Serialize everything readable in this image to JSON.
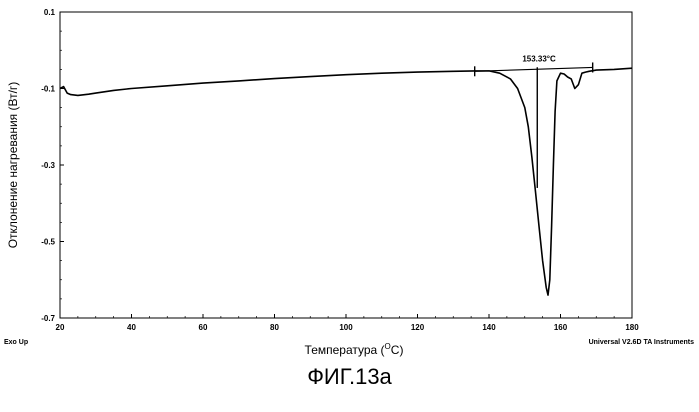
{
  "chart_data": {
    "type": "line",
    "xlabel_main": "Температура (",
    "xlabel_sup": "O",
    "xlabel_tail": "C)",
    "ylabel": "Отклонение нагревания (Вт/г)",
    "xlim": [
      20,
      180
    ],
    "ylim": [
      -0.7,
      0.1
    ],
    "x_ticks": [
      20,
      40,
      60,
      80,
      100,
      120,
      140,
      160,
      180
    ],
    "y_ticks": [
      0.1,
      -0.1,
      -0.3,
      -0.5,
      -0.7
    ],
    "y_tick_labels": [
      "0.1",
      "-0.1",
      "-0.3",
      "-0.5",
      "-0.7"
    ],
    "annotation": "153.33°C",
    "annotation_x": 154,
    "peak_marker_x": 153.5,
    "integration_limits": [
      136,
      169
    ],
    "baseline": {
      "x": [
        136,
        169
      ],
      "y": [
        -0.055,
        -0.045
      ]
    },
    "series": [
      {
        "x": [
          20,
          21,
          22,
          23,
          25,
          28,
          30,
          35,
          40,
          50,
          60,
          70,
          80,
          90,
          100,
          110,
          120,
          130,
          136,
          140,
          143,
          146,
          148,
          150,
          151,
          152,
          153,
          154,
          155,
          156,
          156.5,
          157,
          157.5,
          158,
          158.5,
          159,
          160,
          161,
          162,
          163,
          164,
          165,
          166,
          167,
          168,
          170,
          175,
          180
        ],
        "y": [
          -0.1,
          -0.095,
          -0.112,
          -0.116,
          -0.118,
          -0.115,
          -0.112,
          -0.105,
          -0.1,
          -0.093,
          -0.086,
          -0.08,
          -0.074,
          -0.069,
          -0.064,
          -0.06,
          -0.057,
          -0.055,
          -0.054,
          -0.054,
          -0.06,
          -0.075,
          -0.1,
          -0.15,
          -0.2,
          -0.28,
          -0.37,
          -0.46,
          -0.55,
          -0.62,
          -0.64,
          -0.6,
          -0.46,
          -0.3,
          -0.16,
          -0.08,
          -0.06,
          -0.062,
          -0.07,
          -0.075,
          -0.1,
          -0.09,
          -0.06,
          -0.057,
          -0.055,
          -0.052,
          -0.05,
          -0.047
        ]
      }
    ]
  },
  "footer": {
    "left": "Exo Up",
    "right": "Universal V2.6D TA Instruments"
  },
  "caption": "ФИГ.13а"
}
